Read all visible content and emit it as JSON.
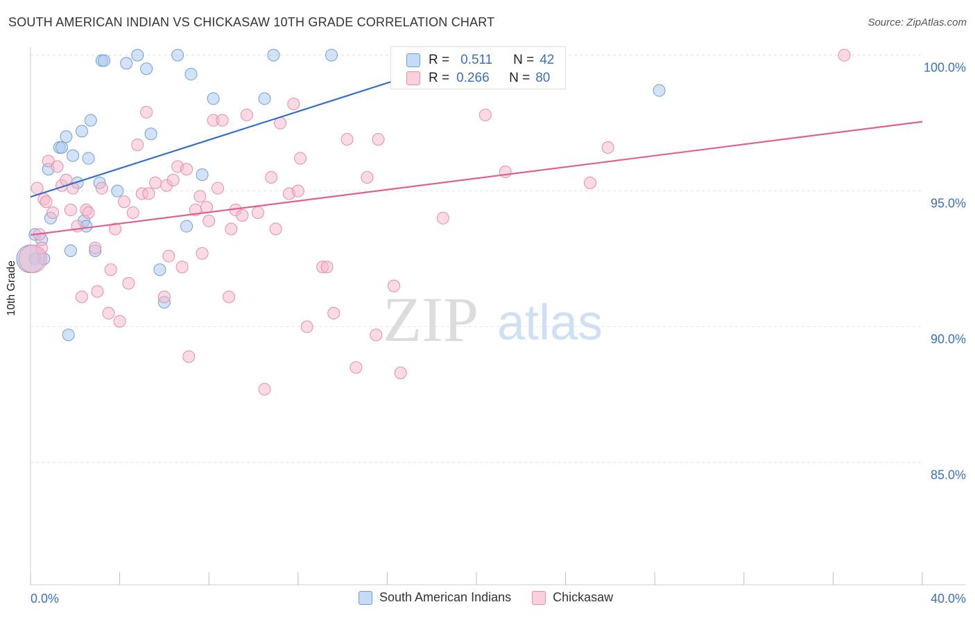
{
  "header": {
    "title": "SOUTH AMERICAN INDIAN VS CHICKASAW 10TH GRADE CORRELATION CHART",
    "source": "Source: ZipAtlas.com"
  },
  "watermark": {
    "zip": "ZIP",
    "atlas": "atlas"
  },
  "legend_stats": {
    "r_label": "R =",
    "n_label": "N =",
    "rows": [
      {
        "r": "0.511",
        "n": "42",
        "color": "#a8c8f0"
      },
      {
        "r": "0.266",
        "n": "80",
        "color": "#f5b8cb"
      }
    ]
  },
  "chart_data": {
    "type": "scatter",
    "title": "SOUTH AMERICAN INDIAN VS CHICKASAW 10TH GRADE CORRELATION CHART",
    "xlabel": "",
    "ylabel": "10th Grade",
    "xlim": [
      0,
      40
    ],
    "ylim": [
      80.5,
      100.5
    ],
    "x_tick_labels": [
      "0.0%",
      "40.0%"
    ],
    "y_ticks": [
      85,
      90,
      95,
      100
    ],
    "y_tick_labels": [
      "85.0%",
      "90.0%",
      "95.0%",
      "100.0%"
    ],
    "grid": true,
    "legend_position": "bottom",
    "series": [
      {
        "name": "South American Indians",
        "color": "#a8c8f0",
        "edge": "#6a9fd8",
        "line_color": "#2f6fcf",
        "trend": [
          [
            0.0,
            94.78
          ],
          [
            19.6,
            99.92
          ]
        ],
        "points": [
          [
            0.2,
            92.5
          ],
          [
            0.2,
            93.4
          ],
          [
            0.5,
            93.2
          ],
          [
            0.6,
            92.5
          ],
          [
            0.8,
            95.8
          ],
          [
            0.9,
            94.0
          ],
          [
            1.3,
            96.6
          ],
          [
            1.4,
            96.6
          ],
          [
            1.6,
            97.0
          ],
          [
            1.7,
            89.7
          ],
          [
            1.8,
            92.8
          ],
          [
            1.9,
            96.3
          ],
          [
            2.1,
            95.3
          ],
          [
            2.3,
            97.2
          ],
          [
            2.4,
            93.9
          ],
          [
            2.5,
            93.7
          ],
          [
            2.6,
            96.2
          ],
          [
            2.7,
            97.6
          ],
          [
            2.9,
            92.8
          ],
          [
            3.1,
            95.3
          ],
          [
            3.2,
            99.8
          ],
          [
            3.3,
            99.8
          ],
          [
            3.9,
            95.0
          ],
          [
            4.3,
            99.7
          ],
          [
            4.8,
            100.0
          ],
          [
            5.2,
            99.5
          ],
          [
            5.4,
            97.1
          ],
          [
            5.8,
            92.1
          ],
          [
            6.0,
            90.9
          ],
          [
            6.6,
            100.0
          ],
          [
            7.0,
            93.7
          ],
          [
            7.2,
            99.3
          ],
          [
            7.7,
            95.6
          ],
          [
            8.2,
            98.4
          ],
          [
            10.5,
            98.4
          ],
          [
            10.9,
            100.0
          ],
          [
            13.5,
            100.0
          ],
          [
            17.5,
            100.0
          ],
          [
            19.2,
            100.0
          ],
          [
            22.4,
            100.0
          ],
          [
            28.2,
            98.7
          ],
          [
            0.0,
            92.5
          ]
        ]
      },
      {
        "name": "Chickasaw",
        "color": "#f5b8cb",
        "edge": "#e88aa8",
        "line_color": "#e0608a",
        "trend": [
          [
            0.0,
            93.38
          ],
          [
            40.0,
            97.55
          ]
        ],
        "points": [
          [
            0.3,
            95.1
          ],
          [
            0.4,
            93.4
          ],
          [
            0.5,
            92.9
          ],
          [
            0.6,
            94.7
          ],
          [
            0.7,
            94.6
          ],
          [
            0.8,
            96.1
          ],
          [
            1.0,
            94.2
          ],
          [
            1.2,
            95.9
          ],
          [
            1.4,
            95.2
          ],
          [
            1.6,
            95.4
          ],
          [
            1.8,
            94.3
          ],
          [
            1.9,
            95.1
          ],
          [
            2.1,
            93.7
          ],
          [
            2.3,
            91.1
          ],
          [
            2.5,
            94.3
          ],
          [
            2.6,
            94.2
          ],
          [
            2.9,
            92.9
          ],
          [
            3.0,
            91.3
          ],
          [
            3.2,
            95.1
          ],
          [
            3.5,
            90.5
          ],
          [
            3.6,
            92.1
          ],
          [
            3.8,
            93.6
          ],
          [
            4.0,
            90.2
          ],
          [
            4.2,
            94.6
          ],
          [
            4.4,
            91.6
          ],
          [
            4.6,
            94.2
          ],
          [
            4.8,
            96.7
          ],
          [
            5.0,
            94.9
          ],
          [
            5.2,
            97.9
          ],
          [
            5.3,
            94.9
          ],
          [
            5.6,
            95.3
          ],
          [
            6.0,
            91.1
          ],
          [
            6.1,
            95.2
          ],
          [
            6.2,
            92.6
          ],
          [
            6.4,
            95.4
          ],
          [
            6.6,
            95.9
          ],
          [
            6.8,
            92.2
          ],
          [
            7.0,
            95.8
          ],
          [
            7.1,
            88.9
          ],
          [
            7.4,
            94.3
          ],
          [
            7.6,
            94.8
          ],
          [
            7.7,
            92.7
          ],
          [
            7.9,
            94.4
          ],
          [
            8.0,
            93.9
          ],
          [
            8.2,
            97.6
          ],
          [
            8.4,
            95.1
          ],
          [
            8.6,
            97.6
          ],
          [
            8.9,
            91.1
          ],
          [
            9.0,
            93.6
          ],
          [
            9.2,
            94.3
          ],
          [
            9.5,
            94.1
          ],
          [
            9.7,
            97.8
          ],
          [
            10.2,
            94.2
          ],
          [
            10.5,
            87.7
          ],
          [
            10.8,
            95.5
          ],
          [
            11.0,
            93.6
          ],
          [
            11.2,
            97.5
          ],
          [
            11.6,
            94.9
          ],
          [
            11.8,
            98.2
          ],
          [
            12.0,
            95.0
          ],
          [
            12.1,
            96.2
          ],
          [
            12.4,
            90.0
          ],
          [
            13.1,
            92.2
          ],
          [
            13.3,
            92.2
          ],
          [
            13.6,
            90.5
          ],
          [
            14.2,
            96.9
          ],
          [
            14.6,
            88.5
          ],
          [
            15.1,
            95.5
          ],
          [
            15.5,
            89.7
          ],
          [
            15.6,
            96.9
          ],
          [
            16.3,
            91.5
          ],
          [
            16.6,
            88.3
          ],
          [
            18.5,
            94.0
          ],
          [
            18.8,
            100.0
          ],
          [
            20.4,
            97.8
          ],
          [
            21.3,
            95.7
          ],
          [
            25.1,
            95.3
          ],
          [
            25.9,
            96.6
          ],
          [
            36.5,
            100.0
          ],
          [
            0.1,
            92.5
          ]
        ]
      }
    ]
  }
}
